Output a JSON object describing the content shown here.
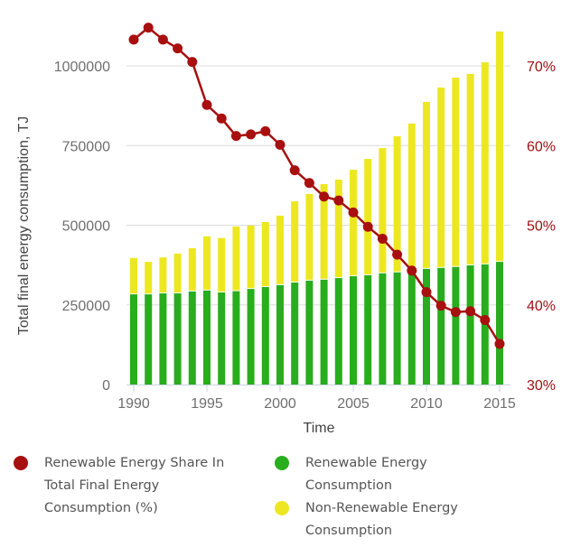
{
  "chart_data": {
    "type": "bar",
    "stacked": true,
    "title": "",
    "xlabel": "Time",
    "ylabel": "Total final energy consumption, TJ",
    "ylim": [
      0,
      1150000
    ],
    "y2lim": [
      30,
      75
    ],
    "categories": [
      1990,
      1991,
      1992,
      1993,
      1994,
      1995,
      1996,
      1997,
      1998,
      1999,
      2000,
      2001,
      2002,
      2003,
      2004,
      2005,
      2006,
      2007,
      2008,
      2009,
      2010,
      2011,
      2012,
      2013,
      2014,
      2015
    ],
    "x_ticks": [
      "1990",
      "1995",
      "2000",
      "2005",
      "2010",
      "2015"
    ],
    "x_tick_values": [
      1990,
      1995,
      2000,
      2005,
      2010,
      2015
    ],
    "y_ticks": [
      "0",
      "250000",
      "500000",
      "750000",
      "1000000"
    ],
    "y_tick_values": [
      0,
      250000,
      500000,
      750000,
      1000000
    ],
    "y2_ticks": [
      "30%",
      "40%",
      "50%",
      "60%",
      "70%"
    ],
    "y2_tick_values": [
      30,
      40,
      50,
      60,
      70
    ],
    "grid": true,
    "legend_position": "bottom",
    "series": [
      {
        "name": "Renewable Energy Consumption",
        "type": "bar",
        "axis": "left",
        "color": "#28ad1c",
        "values": [
          283000,
          283000,
          286000,
          286000,
          292000,
          295000,
          289000,
          293000,
          300000,
          306000,
          312000,
          320000,
          326000,
          329000,
          334000,
          340000,
          343000,
          349000,
          352000,
          358000,
          363000,
          366000,
          369000,
          374000,
          377000,
          385000
        ]
      },
      {
        "name": "Non-Renewable Energy Consumption",
        "type": "bar",
        "axis": "left",
        "color": "#ede721",
        "values": [
          114000,
          102000,
          113000,
          125000,
          136000,
          170000,
          171000,
          203000,
          199000,
          204000,
          218000,
          255000,
          272000,
          300000,
          309000,
          334000,
          365000,
          393000,
          427000,
          461000,
          524000,
          566000,
          594000,
          601000,
          634000,
          723000
        ]
      },
      {
        "name": "Renewable Energy Share In Total Final Energy Consumption (%)",
        "type": "line",
        "axis": "right",
        "color": "#a80f0f",
        "values": [
          73.3,
          74.8,
          73.3,
          72.2,
          70.5,
          65.1,
          63.4,
          61.2,
          61.4,
          61.8,
          60.1,
          56.9,
          55.3,
          53.6,
          53.1,
          51.6,
          49.8,
          48.3,
          46.3,
          44.3,
          41.6,
          39.9,
          39.1,
          39.2,
          38.1,
          35.1
        ]
      }
    ]
  },
  "legend": {
    "items": [
      {
        "label_lines": [
          "Renewable Energy Share In",
          "Total Final Energy",
          "Consumption (%)"
        ],
        "color": "#a80f0f"
      },
      {
        "label_lines": [
          "Renewable Energy",
          "Consumption"
        ],
        "color": "#28ad1c"
      },
      {
        "label_lines": [
          "Non-Renewable Energy",
          "Consumption"
        ],
        "color": "#ede721"
      }
    ]
  }
}
